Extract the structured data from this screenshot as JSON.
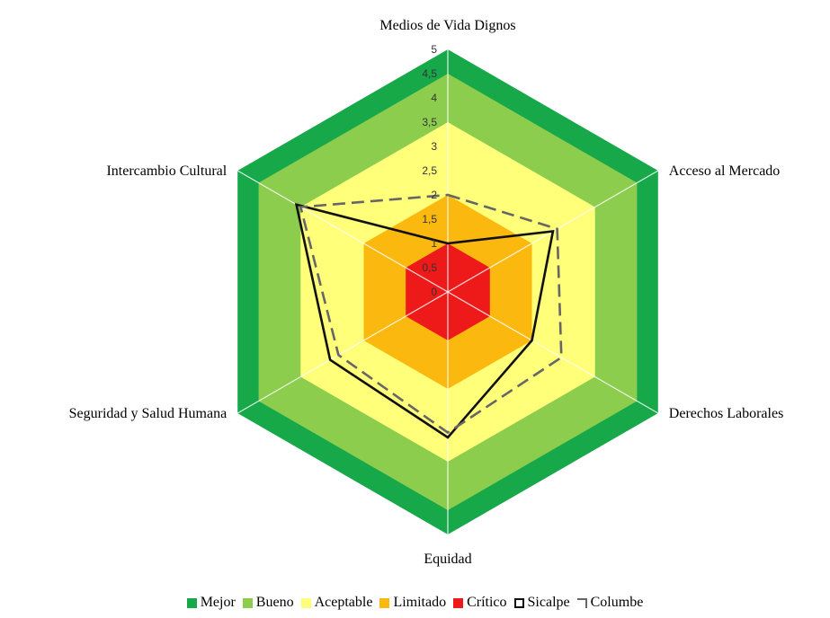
{
  "chart_data": {
    "type": "radar",
    "axes": [
      "Medios de Vida Dignos",
      "Acceso al Mercado",
      "Derechos Laborales",
      "Equidad",
      "Seguridad y Salud Humana",
      "Intercambio Cultural"
    ],
    "ticks": [
      "0",
      "0,5",
      "1",
      "1,5",
      "2",
      "2,5",
      "3",
      "3,5",
      "4",
      "4,5",
      "5"
    ],
    "range": [
      0,
      5
    ],
    "bands": [
      {
        "name": "Mejor",
        "from": 4.5,
        "to": 5,
        "color": "#17A84A"
      },
      {
        "name": "Bueno",
        "from": 3.5,
        "to": 4.5,
        "color": "#8CCD4E"
      },
      {
        "name": "Aceptable",
        "from": 2,
        "to": 3.5,
        "color": "#FFFF7A"
      },
      {
        "name": "Limitado",
        "from": 1,
        "to": 2,
        "color": "#FBB80F"
      },
      {
        "name": "Crítico",
        "from": 0,
        "to": 1,
        "color": "#EE1A1A"
      }
    ],
    "series": [
      {
        "name": "Sicalpe",
        "values": [
          1.0,
          2.5,
          2.0,
          3.0,
          2.8,
          3.6
        ],
        "color": "#111111",
        "style": "solid"
      },
      {
        "name": "Columbe",
        "values": [
          2.0,
          2.6,
          2.7,
          2.9,
          2.6,
          3.5
        ],
        "color": "#666666",
        "style": "dashed"
      }
    ],
    "legend": [
      "Mejor",
      "Bueno",
      "Aceptable",
      "Limitado",
      "Crítico",
      "Sicalpe",
      "Columbe"
    ],
    "legend_position": "bottom"
  }
}
